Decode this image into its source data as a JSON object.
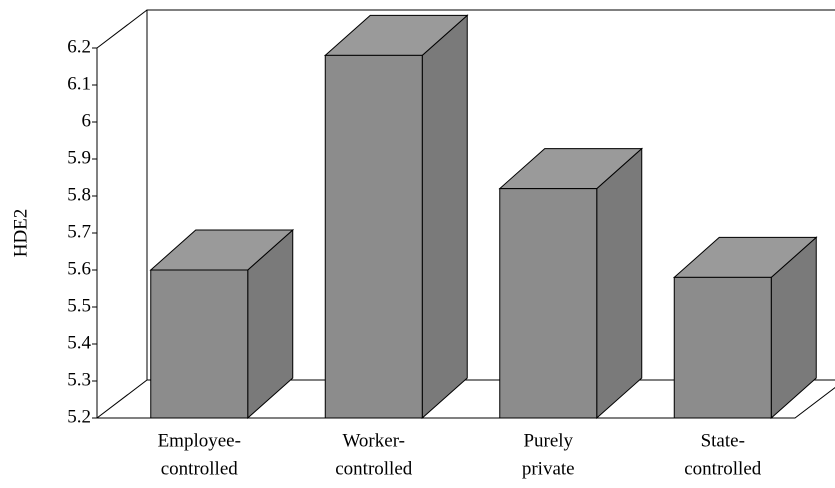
{
  "chart_data": {
    "type": "bar3d",
    "y_label": "HDE2",
    "categories": [
      [
        "Employee-",
        "controlled"
      ],
      [
        "Worker-",
        "controlled"
      ],
      [
        "Purely",
        "private"
      ],
      [
        "State-",
        "controlled"
      ]
    ],
    "values": [
      5.6,
      6.18,
      5.82,
      5.58
    ],
    "color": "#8c8c8c",
    "ylim": [
      5.2,
      6.2
    ],
    "yticks": [
      5.2,
      5.3,
      5.4,
      5.5,
      5.6,
      5.7,
      5.8,
      5.9,
      6,
      6.1,
      6.2
    ]
  }
}
